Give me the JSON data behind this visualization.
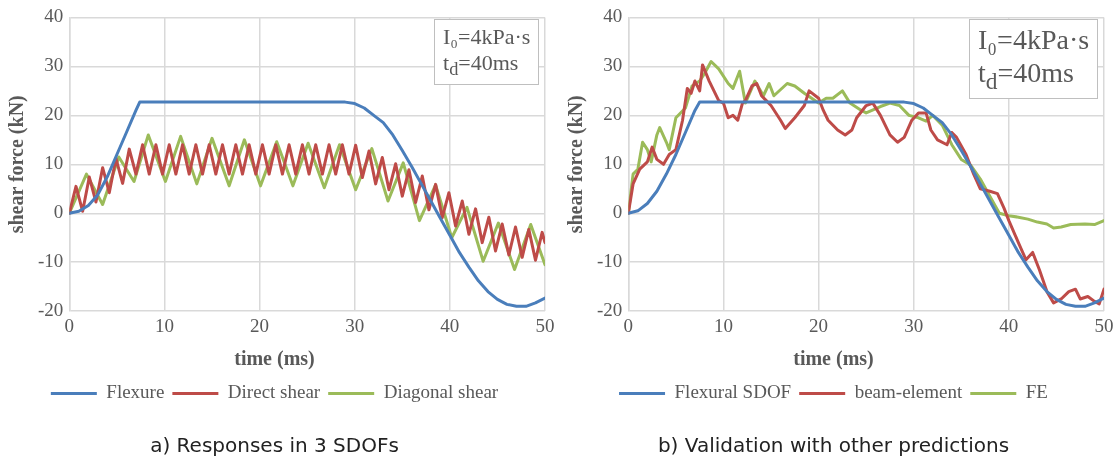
{
  "chart_data": [
    {
      "type": "line",
      "title": "a) Responses in 3 SDOFs",
      "xlabel": "time (ms)",
      "ylabel": "shear force (kN)",
      "annotations": [
        "I₀=4kPa·s",
        "t$_{d}$=40ms"
      ],
      "xlim": [
        0,
        50
      ],
      "xticks": [
        0,
        10,
        20,
        30,
        40,
        50
      ],
      "ylim": [
        -20,
        40
      ],
      "yticks": [
        -20,
        -10,
        0,
        10,
        20,
        30,
        40
      ],
      "grid": true,
      "legend": "bottom",
      "marker": "none",
      "line_style": "solid",
      "series": [
        {
          "name": "Flexure",
          "color": "#4a7ebb",
          "x": [
            0,
            1,
            2,
            3,
            4,
            5,
            6,
            7,
            7.4,
            29,
            30,
            31,
            32,
            33,
            34,
            35,
            36,
            37,
            38,
            39,
            40,
            41,
            42,
            43,
            44,
            45,
            46,
            47,
            48,
            49,
            50
          ],
          "values": [
            0,
            0.4,
            1.6,
            3.8,
            7.5,
            12,
            16.5,
            21,
            22.7,
            22.7,
            22.4,
            21.5,
            20,
            18.5,
            16,
            12.8,
            9.5,
            6,
            2.5,
            -1,
            -4.5,
            -8,
            -11,
            -13.8,
            -16,
            -17.6,
            -18.6,
            -19,
            -19,
            -18.3,
            -17.3
          ]
        },
        {
          "name": "Direct shear",
          "color": "#be4b48",
          "x": [
            0,
            0.7,
            1.4,
            2.1,
            2.8,
            3.5,
            4.2,
            4.9,
            5.6,
            6.3,
            7,
            7.7,
            8.4,
            9.1,
            9.8,
            10.5,
            11.2,
            11.9,
            12.6,
            13.3,
            14,
            14.7,
            15.4,
            16.1,
            16.8,
            17.5,
            18.2,
            18.9,
            19.6,
            20.3,
            21,
            21.7,
            22.4,
            23.1,
            23.8,
            24.5,
            25.2,
            25.9,
            26.6,
            27.3,
            28,
            28.7,
            29.4,
            30.1,
            30.8,
            31.5,
            32.2,
            32.9,
            33.6,
            34.3,
            35,
            35.7,
            36.4,
            37.1,
            37.8,
            38.5,
            39.2,
            39.9,
            40.6,
            41.3,
            42,
            42.7,
            43.4,
            44.1,
            44.8,
            45.5,
            46.2,
            46.9,
            47.6,
            48.3,
            49,
            49.7,
            50
          ],
          "values": [
            0,
            5.5,
            0.4,
            7.4,
            2.3,
            9.3,
            4.2,
            11.2,
            6.1,
            13.1,
            8,
            14,
            8,
            14,
            8,
            14,
            8,
            14,
            8,
            14,
            8,
            14,
            8,
            14,
            8,
            14,
            8,
            14,
            8,
            14,
            8,
            14,
            8,
            14,
            8,
            14,
            8,
            14,
            8,
            14,
            8,
            14,
            8,
            13.9,
            7.3,
            12.7,
            6,
            11.4,
            4.8,
            10.1,
            3.5,
            8.9,
            2.2,
            7.6,
            0.7,
            5.9,
            -0.9,
            4.2,
            -2.6,
            2.5,
            -4.3,
            0.9,
            -6,
            -0.8,
            -7.7,
            -2.2,
            -8.5,
            -2.8,
            -9,
            -3.3,
            -9.6,
            -3.9,
            -6
          ]
        },
        {
          "name": "Diagonal shear",
          "color": "#9bbb59",
          "x": [
            0,
            1.8,
            3.5,
            5.2,
            6.8,
            8.3,
            10.1,
            11.7,
            13.4,
            15,
            16.8,
            18.4,
            20.1,
            21.8,
            23.5,
            25.1,
            26.8,
            28.4,
            30.1,
            31.8,
            33.5,
            35.1,
            36.8,
            38.5,
            40.2,
            41.8,
            43.5,
            45.1,
            46.8,
            48.5,
            50
          ],
          "values": [
            0,
            8,
            1.8,
            11.5,
            6.5,
            16,
            6.5,
            15.7,
            6,
            15.3,
            5.6,
            15,
            5.6,
            14.6,
            5.6,
            14.3,
            5.2,
            14,
            4.8,
            13.2,
            2.5,
            10.3,
            -1.5,
            5.8,
            -5,
            1.2,
            -9.8,
            -2,
            -11.5,
            -2.3,
            -10.5
          ]
        }
      ]
    },
    {
      "type": "line",
      "title": "b) Validation with other predictions",
      "xlabel": "time (ms)",
      "ylabel": "shear force (kN)",
      "annotations": [
        "I₀=4kPa·s",
        "t$_{d}$=40ms"
      ],
      "xlim": [
        0,
        50
      ],
      "xticks": [
        0,
        10,
        20,
        30,
        40,
        50
      ],
      "ylim": [
        -20,
        40
      ],
      "yticks": [
        -20,
        -10,
        0,
        10,
        20,
        30,
        40
      ],
      "grid": true,
      "legend": "bottom",
      "marker": "none",
      "line_style": "solid",
      "series": [
        {
          "name": "Flexural SDOF",
          "color": "#4a7ebb",
          "x": [
            0,
            1,
            2,
            3,
            4,
            5,
            6,
            7,
            7.5,
            29,
            30,
            31,
            32,
            33,
            34,
            35,
            36,
            37,
            38,
            39,
            40,
            41,
            42,
            43,
            44,
            45,
            46,
            47,
            48,
            49,
            50
          ],
          "values": [
            0,
            0.5,
            2,
            4.5,
            8,
            12,
            16.5,
            21,
            22.7,
            22.7,
            22.4,
            21.5,
            20,
            18.5,
            16,
            12.8,
            9.5,
            6,
            2.5,
            -1,
            -4.5,
            -8,
            -11,
            -13.8,
            -16,
            -17.6,
            -18.6,
            -19,
            -19,
            -18.3,
            -17.3
          ]
        },
        {
          "name": "beam-element",
          "color": "#be4b48",
          "x": [
            0,
            0.5,
            1.2,
            2,
            2.5,
            3,
            3.7,
            4.3,
            5,
            5.7,
            6.2,
            6.6,
            7,
            7.5,
            7.8,
            8.5,
            9,
            9.5,
            10,
            10.5,
            11,
            11.5,
            12,
            12.3,
            13,
            13.5,
            14,
            14.5,
            15,
            16,
            16.5,
            17.5,
            18.5,
            19,
            20,
            20.5,
            21,
            22,
            22.8,
            23.5,
            24,
            25,
            25.7,
            26.5,
            27.5,
            28.3,
            29,
            29.8,
            30.5,
            31.3,
            31.8,
            32.5,
            33.5,
            34,
            34.5,
            35.5,
            36.3,
            37,
            38,
            38.8,
            39.5,
            40,
            41,
            41.8,
            42.5,
            43.2,
            44,
            44.7,
            45.5,
            46.3,
            47,
            47.5,
            48.3,
            49,
            49.5,
            50
          ],
          "values": [
            0,
            6,
            9,
            10.5,
            13.5,
            11,
            10,
            12,
            13,
            19,
            25.5,
            24.5,
            27,
            25,
            30.3,
            27,
            25,
            23,
            22.5,
            19.5,
            20,
            19,
            22.5,
            23,
            26,
            26.5,
            24,
            23,
            22,
            19,
            17.3,
            19.5,
            22,
            25,
            23.5,
            21,
            19,
            17,
            16,
            17,
            19.5,
            22,
            22.5,
            20,
            16,
            14.5,
            15.5,
            19,
            20.5,
            20.5,
            17,
            15,
            14,
            16.5,
            15.5,
            12,
            8,
            5,
            4.5,
            4,
            1,
            -1.5,
            -6,
            -9.5,
            -8,
            -11.5,
            -16,
            -18.3,
            -17.5,
            -16,
            -15.5,
            -17.5,
            -17,
            -18,
            -18.5,
            -15.5
          ]
        },
        {
          "name": "FE",
          "color": "#9bbb59",
          "x": [
            0,
            0.5,
            1,
            1.5,
            2,
            2.4,
            3,
            3.3,
            4,
            4.3,
            5,
            6,
            6.7,
            7.5,
            8,
            8.7,
            9.5,
            10.5,
            11,
            11.7,
            12.3,
            13.3,
            14.2,
            14.8,
            15.3,
            16.7,
            17.5,
            18.5,
            20,
            20.8,
            21.5,
            22.5,
            23.3,
            24.5,
            25,
            26.5,
            27.5,
            28.5,
            29.5,
            30.5,
            31.3,
            32,
            33,
            34,
            35,
            36,
            37,
            38,
            39,
            40,
            41,
            42,
            43,
            44,
            44.7,
            45.5,
            46.5,
            48,
            49,
            50
          ],
          "values": [
            0,
            8,
            9,
            14.5,
            13,
            10.5,
            16,
            17.5,
            14.5,
            13,
            19.5,
            21.5,
            26,
            27,
            28.5,
            31,
            29.5,
            26.5,
            25.5,
            29,
            22.5,
            27,
            24,
            26.5,
            24,
            26.5,
            26,
            24.5,
            22.5,
            23.5,
            23.5,
            25,
            22.5,
            21,
            20.5,
            21.8,
            22.5,
            22,
            20,
            19.5,
            18.8,
            20,
            18,
            14,
            11,
            9.8,
            7,
            3.5,
            0,
            -0.5,
            -0.8,
            -1.2,
            -1.8,
            -2.2,
            -3,
            -2.8,
            -2.3,
            -2.2,
            -2.3,
            -1.5
          ]
        }
      ]
    }
  ]
}
